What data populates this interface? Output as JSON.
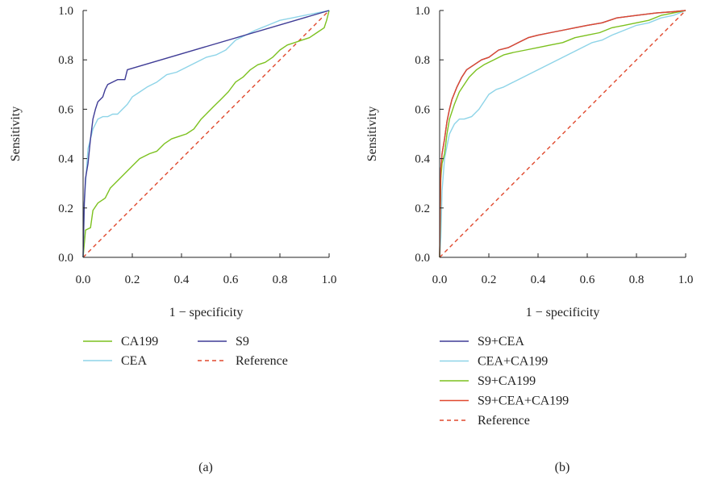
{
  "chart_data": [
    {
      "type": "line",
      "caption": "(a)",
      "xlabel": "1 − specificity",
      "ylabel": "Sensitivity",
      "xlim": [
        0,
        1
      ],
      "ylim": [
        0,
        1
      ],
      "xticks": [
        "0.0",
        "0.2",
        "0.4",
        "0.6",
        "0.8",
        "1.0"
      ],
      "yticks": [
        "0.0",
        "0.2",
        "0.4",
        "0.6",
        "0.8",
        "1.0"
      ],
      "grid": false,
      "legend_position": "bottom",
      "series": [
        {
          "name": "CA199",
          "color": "#7cc11f",
          "dashed": false,
          "points": [
            [
              0,
              0
            ],
            [
              0.01,
              0.11
            ],
            [
              0.03,
              0.12
            ],
            [
              0.04,
              0.19
            ],
            [
              0.06,
              0.22
            ],
            [
              0.09,
              0.24
            ],
            [
              0.11,
              0.28
            ],
            [
              0.14,
              0.31
            ],
            [
              0.17,
              0.34
            ],
            [
              0.2,
              0.37
            ],
            [
              0.23,
              0.4
            ],
            [
              0.27,
              0.42
            ],
            [
              0.3,
              0.43
            ],
            [
              0.33,
              0.46
            ],
            [
              0.36,
              0.48
            ],
            [
              0.39,
              0.49
            ],
            [
              0.42,
              0.5
            ],
            [
              0.45,
              0.52
            ],
            [
              0.48,
              0.56
            ],
            [
              0.5,
              0.58
            ],
            [
              0.53,
              0.61
            ],
            [
              0.56,
              0.64
            ],
            [
              0.59,
              0.67
            ],
            [
              0.62,
              0.71
            ],
            [
              0.65,
              0.73
            ],
            [
              0.68,
              0.76
            ],
            [
              0.71,
              0.78
            ],
            [
              0.74,
              0.79
            ],
            [
              0.77,
              0.81
            ],
            [
              0.8,
              0.84
            ],
            [
              0.83,
              0.86
            ],
            [
              0.86,
              0.87
            ],
            [
              0.89,
              0.88
            ],
            [
              0.92,
              0.89
            ],
            [
              0.95,
              0.91
            ],
            [
              0.98,
              0.93
            ],
            [
              0.99,
              0.96
            ],
            [
              1.0,
              1.0
            ]
          ]
        },
        {
          "name": "CEA",
          "color": "#8ed4e8",
          "dashed": false,
          "points": [
            [
              0,
              0
            ],
            [
              0.005,
              0.22
            ],
            [
              0.01,
              0.3
            ],
            [
              0.02,
              0.44
            ],
            [
              0.03,
              0.48
            ],
            [
              0.04,
              0.52
            ],
            [
              0.05,
              0.54
            ],
            [
              0.06,
              0.56
            ],
            [
              0.08,
              0.57
            ],
            [
              0.1,
              0.57
            ],
            [
              0.12,
              0.58
            ],
            [
              0.14,
              0.58
            ],
            [
              0.16,
              0.6
            ],
            [
              0.18,
              0.62
            ],
            [
              0.2,
              0.65
            ],
            [
              0.23,
              0.67
            ],
            [
              0.26,
              0.69
            ],
            [
              0.3,
              0.71
            ],
            [
              0.34,
              0.74
            ],
            [
              0.38,
              0.75
            ],
            [
              0.42,
              0.77
            ],
            [
              0.46,
              0.79
            ],
            [
              0.5,
              0.81
            ],
            [
              0.54,
              0.82
            ],
            [
              0.58,
              0.84
            ],
            [
              0.62,
              0.88
            ],
            [
              0.66,
              0.9
            ],
            [
              0.7,
              0.92
            ],
            [
              0.75,
              0.94
            ],
            [
              0.8,
              0.96
            ],
            [
              0.85,
              0.97
            ],
            [
              0.9,
              0.98
            ],
            [
              0.95,
              0.99
            ],
            [
              1.0,
              1.0
            ]
          ]
        },
        {
          "name": "S9",
          "color": "#3f3c96",
          "dashed": false,
          "points": [
            [
              0,
              0
            ],
            [
              0.005,
              0.22
            ],
            [
              0.01,
              0.32
            ],
            [
              0.02,
              0.38
            ],
            [
              0.03,
              0.48
            ],
            [
              0.04,
              0.56
            ],
            [
              0.05,
              0.6
            ],
            [
              0.06,
              0.63
            ],
            [
              0.08,
              0.65
            ],
            [
              0.09,
              0.68
            ],
            [
              0.1,
              0.7
            ],
            [
              0.12,
              0.71
            ],
            [
              0.14,
              0.72
            ],
            [
              0.17,
              0.72
            ],
            [
              0.18,
              0.76
            ],
            [
              1.0,
              1.0
            ]
          ]
        },
        {
          "name": "Reference",
          "color": "#e0492e",
          "dashed": true,
          "points": [
            [
              0,
              0
            ],
            [
              1,
              1
            ]
          ]
        }
      ]
    },
    {
      "type": "line",
      "caption": "(b)",
      "xlabel": "1 − specificity",
      "ylabel": "Sensitivity",
      "xlim": [
        0,
        1
      ],
      "ylim": [
        0,
        1
      ],
      "xticks": [
        "0.0",
        "0.2",
        "0.4",
        "0.6",
        "0.8",
        "1.0"
      ],
      "yticks": [
        "0.0",
        "0.2",
        "0.4",
        "0.6",
        "0.8",
        "1.0"
      ],
      "grid": false,
      "legend_position": "bottom",
      "series": [
        {
          "name": "S9+CEA",
          "color": "#3f3c96",
          "dashed": false,
          "points": [
            [
              0,
              0
            ],
            [
              0.005,
              0.36
            ],
            [
              0.01,
              0.42
            ],
            [
              0.02,
              0.48
            ],
            [
              0.03,
              0.55
            ],
            [
              0.04,
              0.6
            ],
            [
              0.05,
              0.64
            ],
            [
              0.07,
              0.69
            ],
            [
              0.09,
              0.73
            ],
            [
              0.11,
              0.76
            ],
            [
              0.14,
              0.78
            ],
            [
              0.17,
              0.8
            ],
            [
              0.2,
              0.81
            ],
            [
              0.24,
              0.84
            ],
            [
              0.28,
              0.85
            ],
            [
              0.32,
              0.87
            ],
            [
              0.36,
              0.89
            ],
            [
              0.4,
              0.9
            ],
            [
              0.45,
              0.91
            ],
            [
              0.5,
              0.92
            ],
            [
              0.55,
              0.93
            ],
            [
              0.6,
              0.94
            ],
            [
              0.66,
              0.95
            ],
            [
              0.72,
              0.97
            ],
            [
              0.8,
              0.98
            ],
            [
              0.88,
              0.99
            ],
            [
              0.95,
              0.995
            ],
            [
              1.0,
              1.0
            ]
          ]
        },
        {
          "name": "CEA+CA199",
          "color": "#8ed4e8",
          "dashed": false,
          "points": [
            [
              0,
              0
            ],
            [
              0.005,
              0.08
            ],
            [
              0.01,
              0.27
            ],
            [
              0.02,
              0.4
            ],
            [
              0.03,
              0.45
            ],
            [
              0.04,
              0.5
            ],
            [
              0.06,
              0.54
            ],
            [
              0.08,
              0.56
            ],
            [
              0.1,
              0.56
            ],
            [
              0.13,
              0.57
            ],
            [
              0.16,
              0.6
            ],
            [
              0.18,
              0.63
            ],
            [
              0.2,
              0.66
            ],
            [
              0.23,
              0.68
            ],
            [
              0.26,
              0.69
            ],
            [
              0.3,
              0.71
            ],
            [
              0.34,
              0.73
            ],
            [
              0.38,
              0.75
            ],
            [
              0.42,
              0.77
            ],
            [
              0.46,
              0.79
            ],
            [
              0.5,
              0.81
            ],
            [
              0.54,
              0.83
            ],
            [
              0.58,
              0.85
            ],
            [
              0.62,
              0.87
            ],
            [
              0.66,
              0.88
            ],
            [
              0.7,
              0.9
            ],
            [
              0.75,
              0.92
            ],
            [
              0.8,
              0.94
            ],
            [
              0.85,
              0.95
            ],
            [
              0.9,
              0.97
            ],
            [
              0.95,
              0.98
            ],
            [
              1.0,
              1.0
            ]
          ]
        },
        {
          "name": "S9+CA199",
          "color": "#7cc11f",
          "dashed": false,
          "points": [
            [
              0,
              0
            ],
            [
              0.005,
              0.32
            ],
            [
              0.01,
              0.38
            ],
            [
              0.02,
              0.42
            ],
            [
              0.03,
              0.5
            ],
            [
              0.04,
              0.56
            ],
            [
              0.06,
              0.62
            ],
            [
              0.08,
              0.67
            ],
            [
              0.1,
              0.7
            ],
            [
              0.12,
              0.73
            ],
            [
              0.15,
              0.76
            ],
            [
              0.18,
              0.78
            ],
            [
              0.22,
              0.8
            ],
            [
              0.26,
              0.82
            ],
            [
              0.3,
              0.83
            ],
            [
              0.35,
              0.84
            ],
            [
              0.4,
              0.85
            ],
            [
              0.45,
              0.86
            ],
            [
              0.5,
              0.87
            ],
            [
              0.55,
              0.89
            ],
            [
              0.6,
              0.9
            ],
            [
              0.65,
              0.91
            ],
            [
              0.7,
              0.93
            ],
            [
              0.75,
              0.94
            ],
            [
              0.8,
              0.95
            ],
            [
              0.85,
              0.96
            ],
            [
              0.9,
              0.98
            ],
            [
              0.95,
              0.99
            ],
            [
              1.0,
              1.0
            ]
          ]
        },
        {
          "name": "S9+CEA+CA199",
          "color": "#e0492e",
          "dashed": false,
          "points": [
            [
              0,
              0
            ],
            [
              0.005,
              0.36
            ],
            [
              0.01,
              0.42
            ],
            [
              0.02,
              0.48
            ],
            [
              0.03,
              0.55
            ],
            [
              0.04,
              0.6
            ],
            [
              0.05,
              0.64
            ],
            [
              0.07,
              0.69
            ],
            [
              0.09,
              0.73
            ],
            [
              0.11,
              0.76
            ],
            [
              0.14,
              0.78
            ],
            [
              0.17,
              0.8
            ],
            [
              0.2,
              0.81
            ],
            [
              0.24,
              0.84
            ],
            [
              0.28,
              0.85
            ],
            [
              0.32,
              0.87
            ],
            [
              0.36,
              0.89
            ],
            [
              0.4,
              0.9
            ],
            [
              0.45,
              0.91
            ],
            [
              0.5,
              0.92
            ],
            [
              0.55,
              0.93
            ],
            [
              0.6,
              0.94
            ],
            [
              0.66,
              0.95
            ],
            [
              0.72,
              0.97
            ],
            [
              0.8,
              0.98
            ],
            [
              0.88,
              0.99
            ],
            [
              0.95,
              0.995
            ],
            [
              1.0,
              1.0
            ]
          ]
        },
        {
          "name": "Reference",
          "color": "#e0492e",
          "dashed": true,
          "points": [
            [
              0,
              0
            ],
            [
              1,
              1
            ]
          ]
        }
      ]
    }
  ]
}
